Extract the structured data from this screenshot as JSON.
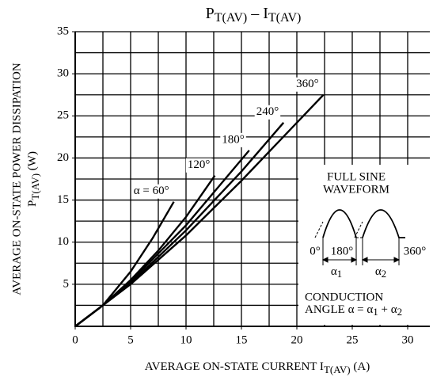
{
  "chart_data": {
    "type": "line",
    "title": [
      "P",
      "T(AV)",
      " – I",
      "T(AV)"
    ],
    "y_label": [
      "AVERAGE ON-STATE POWER DISSIPATION",
      "P",
      "T(AV)",
      " (W)"
    ],
    "x_label": [
      "AVERAGE ON-STATE CURRENT I",
      "T(AV)",
      " (A)"
    ],
    "xlim": [
      0,
      32
    ],
    "ylim": [
      0,
      35
    ],
    "xticks": [
      0,
      5,
      10,
      15,
      20,
      25,
      30
    ],
    "yticks": [
      5,
      10,
      15,
      20,
      25,
      30,
      35
    ],
    "xgrid": [
      2.5,
      5,
      7.5,
      10,
      12.5,
      15,
      17.5,
      20,
      22.5,
      25,
      27.5,
      30
    ],
    "ygrid": [
      2.5,
      5,
      7.5,
      10,
      12.5,
      15,
      17.5,
      20,
      22.5,
      25,
      27.5,
      30,
      32.5,
      35
    ],
    "grid": true,
    "series": [
      {
        "name": "α = 60°",
        "color": "#000",
        "x": [
          0,
          2.5,
          5,
          7,
          8.9
        ],
        "values": [
          0,
          2.5,
          6.5,
          10.5,
          14.8
        ]
      },
      {
        "name": "120°",
        "color": "#000",
        "x": [
          0,
          2.5,
          5,
          7.5,
          10,
          12.6
        ],
        "values": [
          0,
          2.5,
          5.5,
          9,
          13,
          17.9
        ]
      },
      {
        "name": "180°",
        "color": "#000",
        "x": [
          0,
          2.5,
          5,
          10,
          15.7
        ],
        "values": [
          0,
          2.5,
          5.3,
          12,
          20.9
        ]
      },
      {
        "name": "240°",
        "color": "#000",
        "x": [
          0,
          2.5,
          5,
          10,
          15,
          18.8
        ],
        "values": [
          0,
          2.5,
          5.1,
          11.4,
          18.4,
          24.2
        ]
      },
      {
        "name": "360°",
        "color": "#000",
        "x": [
          0,
          2.5,
          5,
          10,
          15,
          22.4
        ],
        "values": [
          0,
          2.5,
          5,
          10.8,
          17.3,
          27.5
        ]
      }
    ],
    "inset": {
      "title": [
        "FULL SINE",
        "WAVEFORM"
      ],
      "angles": [
        "0°",
        "180°",
        "360°"
      ],
      "alphas": [
        [
          "α",
          "1"
        ],
        [
          "α",
          "2"
        ]
      ],
      "conduction": [
        "CONDUCTION",
        "ANGLE α = α",
        "1",
        " + α",
        "2"
      ]
    }
  }
}
